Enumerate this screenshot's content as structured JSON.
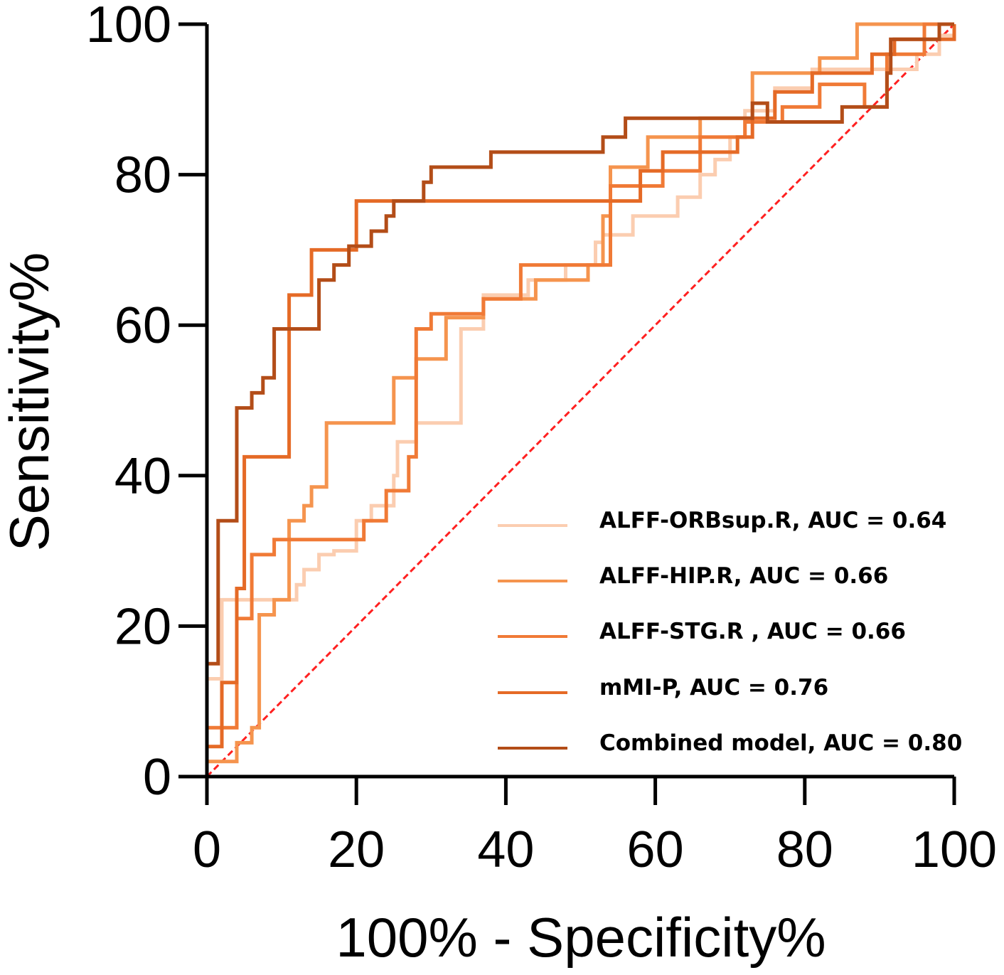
{
  "chart_data": {
    "type": "line",
    "xlabel": "100% - Specificity%",
    "ylabel": "Sensitivity%",
    "xlim": [
      0,
      100
    ],
    "ylim": [
      0,
      100
    ],
    "xticks": [
      0,
      20,
      40,
      60,
      80,
      100
    ],
    "yticks": [
      0,
      20,
      40,
      60,
      80,
      100
    ],
    "grid": false,
    "legend_position": "bottom-right",
    "reference_line": {
      "from": [
        0,
        0
      ],
      "to": [
        100,
        100
      ],
      "color": "#ff2020",
      "style": "dashed"
    },
    "series": [
      {
        "name": "ALFF-ORBsup.R, AUC = 0.64",
        "color": "#fbcdb0",
        "points": [
          [
            0,
            0
          ],
          [
            0,
            13
          ],
          [
            2,
            13
          ],
          [
            2,
            23.5
          ],
          [
            12,
            23.5
          ],
          [
            12,
            25.5
          ],
          [
            13,
            25.5
          ],
          [
            13,
            27.5
          ],
          [
            15,
            27.5
          ],
          [
            15,
            29.5
          ],
          [
            17,
            29.5
          ],
          [
            17,
            30
          ],
          [
            20,
            30
          ],
          [
            20,
            34
          ],
          [
            22,
            34
          ],
          [
            22,
            36
          ],
          [
            25,
            36
          ],
          [
            25,
            40
          ],
          [
            25.5,
            40
          ],
          [
            25.5,
            44.5
          ],
          [
            28,
            44.5
          ],
          [
            28,
            47
          ],
          [
            34,
            47
          ],
          [
            34,
            59.5
          ],
          [
            37,
            59.5
          ],
          [
            37,
            64
          ],
          [
            43,
            64
          ],
          [
            43,
            66
          ],
          [
            48,
            66
          ],
          [
            48,
            68
          ],
          [
            52,
            68
          ],
          [
            52,
            71
          ],
          [
            53,
            71
          ],
          [
            53,
            72
          ],
          [
            57,
            72
          ],
          [
            57,
            74.5
          ],
          [
            63,
            74.5
          ],
          [
            63,
            77
          ],
          [
            66,
            77
          ],
          [
            66,
            80
          ],
          [
            68,
            80
          ],
          [
            68,
            82
          ],
          [
            70,
            82
          ],
          [
            70,
            85
          ],
          [
            72,
            85
          ],
          [
            72,
            88.5
          ],
          [
            76,
            88.5
          ],
          [
            76,
            91.5
          ],
          [
            81,
            91.5
          ],
          [
            81,
            94
          ],
          [
            95,
            94
          ],
          [
            95,
            96
          ],
          [
            98,
            96
          ],
          [
            98,
            98.5
          ],
          [
            100,
            98.5
          ],
          [
            100,
            100
          ]
        ]
      },
      {
        "name": "ALFF-HIP.R, AUC = 0.66",
        "color": "#f5944e",
        "points": [
          [
            0,
            0
          ],
          [
            0,
            2
          ],
          [
            4,
            2
          ],
          [
            4,
            4.5
          ],
          [
            6,
            4.5
          ],
          [
            6,
            6.5
          ],
          [
            7,
            6.5
          ],
          [
            7,
            21.5
          ],
          [
            9,
            21.5
          ],
          [
            9,
            23.5
          ],
          [
            11,
            23.5
          ],
          [
            11,
            34
          ],
          [
            13,
            34
          ],
          [
            13,
            36
          ],
          [
            14,
            36
          ],
          [
            14,
            38.5
          ],
          [
            16,
            38.5
          ],
          [
            16,
            47
          ],
          [
            25,
            47
          ],
          [
            25,
            53
          ],
          [
            28,
            53
          ],
          [
            28,
            55.5
          ],
          [
            32,
            55.5
          ],
          [
            32,
            61
          ],
          [
            37,
            61
          ],
          [
            37,
            63.5
          ],
          [
            44,
            63.5
          ],
          [
            44,
            66
          ],
          [
            51,
            66
          ],
          [
            51,
            68
          ],
          [
            53,
            68
          ],
          [
            53,
            74.5
          ],
          [
            54,
            74.5
          ],
          [
            54,
            81
          ],
          [
            59,
            81
          ],
          [
            59,
            85
          ],
          [
            66,
            85
          ],
          [
            66,
            87.5
          ],
          [
            73,
            87.5
          ],
          [
            73,
            93.5
          ],
          [
            82,
            93.5
          ],
          [
            82,
            95.5
          ],
          [
            87,
            95.5
          ],
          [
            87,
            100
          ],
          [
            100,
            100
          ]
        ]
      },
      {
        "name": "ALFF-STG.R , AUC = 0.66",
        "color": "#f07a36",
        "points": [
          [
            0,
            0
          ],
          [
            0,
            6.5
          ],
          [
            4,
            6.5
          ],
          [
            4,
            21
          ],
          [
            6,
            21
          ],
          [
            6,
            29.5
          ],
          [
            9,
            29.5
          ],
          [
            9,
            31.5
          ],
          [
            21,
            31.5
          ],
          [
            21,
            34
          ],
          [
            24,
            34
          ],
          [
            24,
            38
          ],
          [
            27,
            38
          ],
          [
            27,
            42.5
          ],
          [
            28,
            42.5
          ],
          [
            28,
            59.5
          ],
          [
            30,
            59.5
          ],
          [
            30,
            61.5
          ],
          [
            37,
            61.5
          ],
          [
            37,
            63.5
          ],
          [
            42,
            63.5
          ],
          [
            42,
            68
          ],
          [
            54,
            68
          ],
          [
            54,
            78.5
          ],
          [
            61,
            78.5
          ],
          [
            61,
            80.5
          ],
          [
            66,
            80.5
          ],
          [
            66,
            85
          ],
          [
            72,
            85
          ],
          [
            72,
            87
          ],
          [
            77,
            87
          ],
          [
            77,
            89
          ],
          [
            82,
            89
          ],
          [
            82,
            92
          ],
          [
            88,
            92
          ],
          [
            88,
            89
          ],
          [
            91,
            89
          ],
          [
            91,
            96
          ],
          [
            96,
            96
          ],
          [
            96,
            100
          ],
          [
            100,
            100
          ]
        ]
      },
      {
        "name": "mMI-P, AUC = 0.76",
        "color": "#e56a26",
        "points": [
          [
            0,
            0
          ],
          [
            0,
            4
          ],
          [
            2,
            4
          ],
          [
            2,
            12.5
          ],
          [
            4,
            12.5
          ],
          [
            4,
            25
          ],
          [
            5,
            25
          ],
          [
            5,
            42.5
          ],
          [
            11,
            42.5
          ],
          [
            11,
            64
          ],
          [
            14,
            64
          ],
          [
            14,
            70
          ],
          [
            20,
            70
          ],
          [
            20,
            76.5
          ],
          [
            58,
            76.5
          ],
          [
            58,
            80.5
          ],
          [
            61,
            80.5
          ],
          [
            61,
            83
          ],
          [
            71,
            83
          ],
          [
            71,
            85
          ],
          [
            73,
            85
          ],
          [
            73,
            87.5
          ],
          [
            76,
            87.5
          ],
          [
            76,
            91
          ],
          [
            81,
            91
          ],
          [
            81,
            93.5
          ],
          [
            89,
            93.5
          ],
          [
            89,
            96
          ],
          [
            92,
            96
          ],
          [
            92,
            98
          ],
          [
            100,
            98
          ],
          [
            100,
            100
          ]
        ]
      },
      {
        "name": "Combined model, AUC = 0.80",
        "color": "#b34d18",
        "points": [
          [
            0,
            0
          ],
          [
            0,
            15
          ],
          [
            1.5,
            15
          ],
          [
            1.5,
            34
          ],
          [
            4,
            34
          ],
          [
            4,
            49
          ],
          [
            6,
            49
          ],
          [
            6,
            51
          ],
          [
            7.5,
            51
          ],
          [
            7.5,
            53
          ],
          [
            9,
            53
          ],
          [
            9,
            59.5
          ],
          [
            15,
            59.5
          ],
          [
            15,
            66
          ],
          [
            17,
            66
          ],
          [
            17,
            68
          ],
          [
            19,
            68
          ],
          [
            19,
            70.5
          ],
          [
            22,
            70.5
          ],
          [
            22,
            72.5
          ],
          [
            24,
            72.5
          ],
          [
            24,
            74.5
          ],
          [
            25,
            74.5
          ],
          [
            25,
            76.5
          ],
          [
            29,
            76.5
          ],
          [
            29,
            79
          ],
          [
            30,
            79
          ],
          [
            30,
            81
          ],
          [
            38,
            81
          ],
          [
            38,
            83
          ],
          [
            53,
            83
          ],
          [
            53,
            85
          ],
          [
            56,
            85
          ],
          [
            56,
            87.5
          ],
          [
            73,
            87.5
          ],
          [
            73,
            89.5
          ],
          [
            75,
            89.5
          ],
          [
            75,
            87
          ],
          [
            85,
            87
          ],
          [
            85,
            89
          ],
          [
            91,
            89
          ],
          [
            91,
            93.5
          ],
          [
            91.5,
            93.5
          ],
          [
            91.5,
            98
          ],
          [
            98,
            98
          ],
          [
            98,
            100
          ],
          [
            100,
            100
          ]
        ]
      }
    ]
  }
}
